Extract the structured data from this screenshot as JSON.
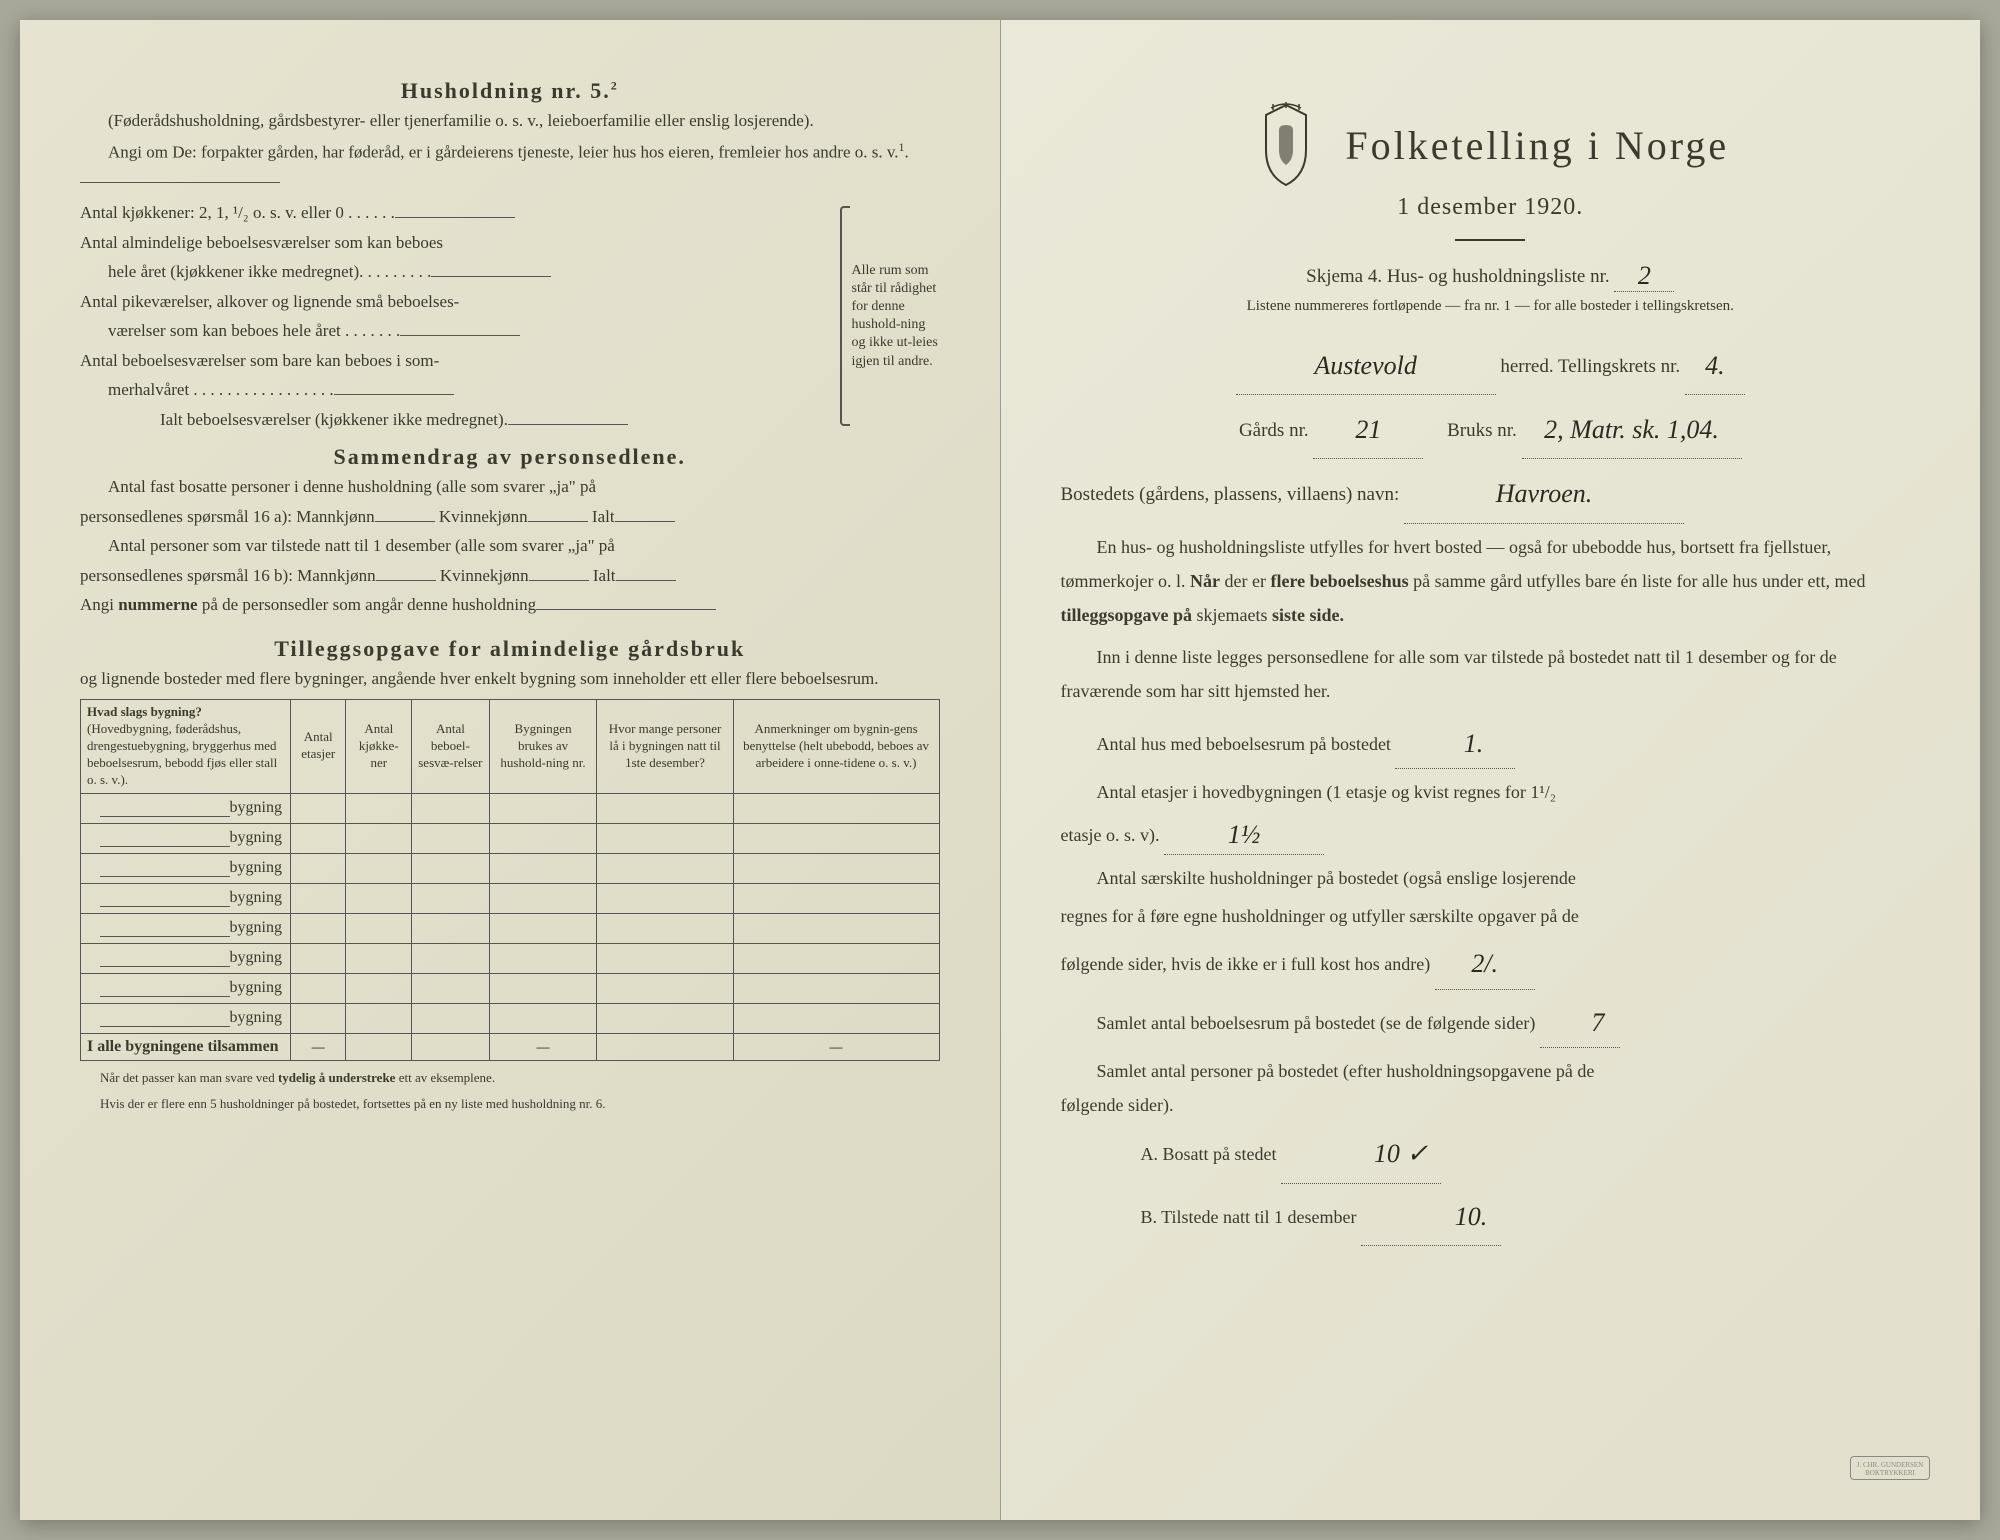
{
  "left": {
    "husholdning_title": "Husholdning nr. 5.",
    "husholdning_sup": "2",
    "husholdning_note": "(Føderådshusholdning, gårdsbestyrer- eller tjenerfamilie o. s. v., leieboerfamilie eller enslig losjerende).",
    "angi_line": "Angi om De:  forpakter gården, har føderåd, er i gårdeierens tjeneste, leier hus hos eieren, fremleier hos andre o. s. v.",
    "angi_sup": "1",
    "kjokkener_line": "Antal kjøkkener: 2, 1, ¹/₂ o. s. v. eller 0 . . . . . .",
    "alm_line1": "Antal almindelige beboelsesværelser som kan beboes",
    "alm_line2": "hele året (kjøkkener ikke medregnet). . . . . . . . .",
    "pike_line1": "Antal pikeværelser, alkover og lignende små beboelses-",
    "pike_line2": "værelser som kan beboes hele året . . . . . . .",
    "sommer_line1": "Antal beboelsesværelser som bare kan beboes i som-",
    "sommer_line2": "merhalvåret . . . . . . . . . . . . . . . . .",
    "ialt_line": "Ialt beboelsesværelser  (kjøkkener ikke medregnet).",
    "brace_text": "Alle rum som står til rådighet for denne hushold-ning og ikke ut-leies igjen til andre.",
    "sammendrag_title": "Sammendrag av personsedlene.",
    "sammendrag_line1a": "Antal fast bosatte personer i denne husholdning (alle som svarer „ja\" på",
    "sammendrag_line1b": "personsedlenes spørsmål 16 a): Mannkjønn",
    "kvinnekjonn": "Kvinnekjønn",
    "ialt": "Ialt",
    "sammendrag_line2a": "Antal personer som var tilstede natt til 1 desember (alle som svarer „ja\" på",
    "sammendrag_line2b": "personsedlenes spørsmål 16 b): Mannkjønn",
    "angi_numrene": "Angi nummerne på de personsedler som angår denne husholdning",
    "tillegg_title": "Tilleggsopgave for almindelige gårdsbruk",
    "tillegg_note": "og lignende bosteder med flere bygninger, angående hver enkelt bygning som inneholder ett eller flere beboelsesrum.",
    "table": {
      "headers": [
        "Hvad slags bygning?\n(Hovedbygning, føderådshus, drengestuebygning, bryggerhus med beboelsesrum, bebodd fjøs eller stall o. s. v.).",
        "Antal etasjer",
        "Antal kjøkke-ner",
        "Antal beboel-sesvæ-relser",
        "Bygningen brukes av hushold-ning nr.",
        "Hvor mange personer lå i bygningen natt til 1ste desember?",
        "Anmerkninger om bygnin-gens benyttelse (helt ubebodd, beboes av arbeidere i onne-tidene o. s. v.)"
      ],
      "row_label": "bygning",
      "row_count": 8,
      "total_label": "I alle bygningene tilsammen",
      "dash": "—"
    },
    "footnote1": "Når det passer kan man svare ved tydelig å understreke ett av eksemplene.",
    "footnote2": "Hvis der er flere enn 5 husholdninger på bostedet, fortsettes på en ny liste med husholdning nr. 6."
  },
  "right": {
    "title": "Folketelling  i  Norge",
    "subtitle": "1 desember 1920.",
    "skjema": "Skjema 4.   Hus- og husholdningsliste nr.",
    "skjema_val": "2",
    "listene": "Listene nummereres fortløpende — fra nr. 1 — for alle bosteder i tellingskretsen.",
    "herred_val": "Austevold",
    "herred_label": "herred.    Tellingskrets nr.",
    "krets_val": "4.",
    "gards_label": "Gårds nr.",
    "gards_val": "21",
    "bruks_label": "Bruks nr.",
    "bruks_val": "2, Matr. sk. 1,04.",
    "bosted_label": "Bostedets (gårdens, plassens, villaens) navn:",
    "bosted_val": "Havroen.",
    "para1": "En hus- og husholdningsliste utfylles for hvert bosted — også for ubebodde hus, bortsett fra fjellstuer, tømmerkojer o. l.  Når der er flere beboelseshus på samme gård utfylles bare én liste for alle hus under ett, med tilleggsopgave på skjemaets siste side.",
    "para2": "Inn i denne liste legges personsedlene for alle som var tilstede på bostedet natt til 1 desember og for de fraværende som har sitt hjemsted her.",
    "antal_hus": "Antal hus med beboelsesrum på bostedet",
    "antal_hus_val": "1.",
    "antal_etasjer1": "Antal  etasjer  i  hovedbygningen  (1 etasje  og  kvist  regnes  for  1¹/₂",
    "antal_etasjer2": "etasje o. s. v).",
    "antal_etasjer_val": "1½",
    "saerskilte1": "Antal særskilte husholdninger på bostedet (også enslige losjerende",
    "saerskilte2": "regnes for å føre egne husholdninger og utfyller særskilte opgaver på de",
    "saerskilte3": "følgende sider, hvis de ikke er i full kost hos andre)",
    "saerskilte_val": "2/.",
    "samlet_rum": "Samlet antal beboelsesrum på bostedet (se de følgende sider)",
    "samlet_rum_val": "7",
    "samlet_pers1": "Samlet antal personer på bostedet (efter husholdningsopgavene på de",
    "samlet_pers2": "følgende sider).",
    "bosatt_label": "A.  Bosatt på stedet",
    "bosatt_val": "10 ✓",
    "tilstede_label": "B.  Tilstede natt til 1 desember",
    "tilstede_val": "10."
  }
}
